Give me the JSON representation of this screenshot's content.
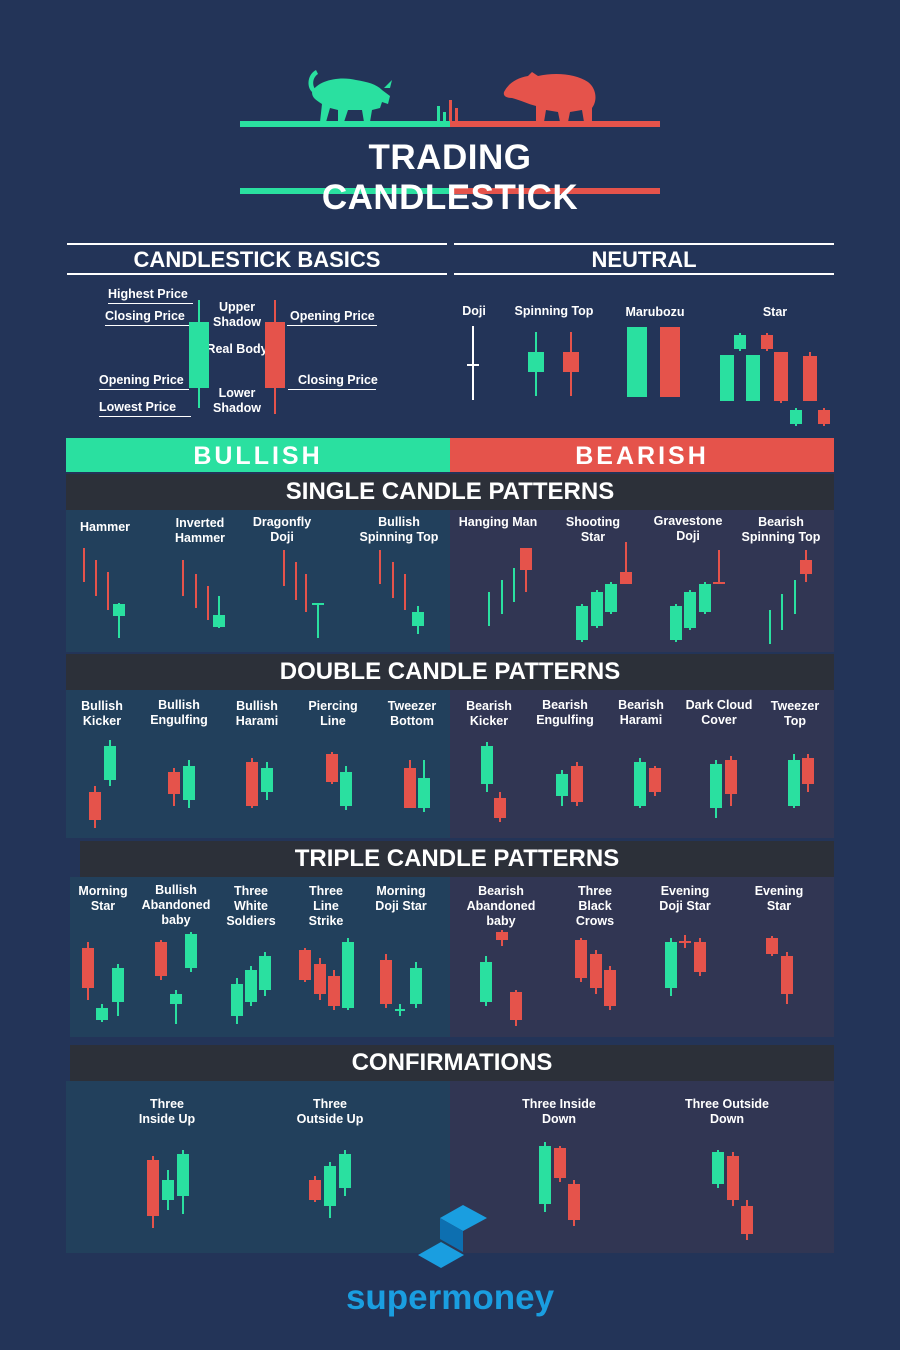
{
  "colors": {
    "background": "#233458",
    "bullish": "#2ae0a0",
    "bearish": "#e5534b",
    "header_bar": "#2c3039",
    "brand": "#1a9ee0"
  },
  "title": "TRADING CANDLESTICK",
  "icons": [
    "bull-icon",
    "bear-icon",
    "supermoney-logo-icon"
  ],
  "basics": {
    "heading": "CANDLESTICK BASICS",
    "labels": {
      "highest_price": "Highest Price",
      "closing_price_left": "Closing Price",
      "opening_price_left": "Opening Price",
      "lowest_price": "Lowest Price",
      "upper_shadow": "Upper Shadow",
      "real_body": "Real Body",
      "lower_shadow": "Lower Shadow",
      "opening_price_right": "Opening Price",
      "closing_price_right": "Closing Price"
    }
  },
  "neutral": {
    "heading": "NEUTRAL",
    "patterns": [
      "Doji",
      "Spinning Top",
      "Marubozu",
      "Star"
    ]
  },
  "banners": {
    "bullish": "BULLISH",
    "bearish": "BEARISH"
  },
  "sections": {
    "single": {
      "heading": "SINGLE CANDLE PATTERNS",
      "bullish": [
        "Hammer",
        "Inverted Hammer",
        "Dragonfly Doji",
        "Bullish Spinning Top"
      ],
      "bearish": [
        "Hanging Man",
        "Shooting Star",
        "Gravestone Doji",
        "Bearish Spinning Top"
      ]
    },
    "double": {
      "heading": "DOUBLE CANDLE PATTERNS",
      "bullish": [
        "Bullish Kicker",
        "Bullish Engulfing",
        "Bullish Harami",
        "Piercing Line",
        "Tweezer Bottom"
      ],
      "bearish": [
        "Bearish Kicker",
        "Bearish Engulfing",
        "Bearish Harami",
        "Dark Cloud Cover",
        "Tweezer Top"
      ]
    },
    "triple": {
      "heading": "TRIPLE CANDLE PATTERNS",
      "bullish": [
        "Morning Star",
        "Bullish Abandoned baby",
        "Three White Soldiers",
        "Three Line Strike",
        "Morning Doji Star"
      ],
      "bearish": [
        "Bearish Abandoned baby",
        "Three Black Crows",
        "Evening Doji Star",
        "Evening Star"
      ]
    },
    "confirmations": {
      "heading": "CONFIRMATIONS",
      "bullish": [
        "Three Inside Up",
        "Three Outside Up"
      ],
      "bearish": [
        "Three Inside Down",
        "Three Outside Down"
      ]
    }
  },
  "brand": "supermoney"
}
